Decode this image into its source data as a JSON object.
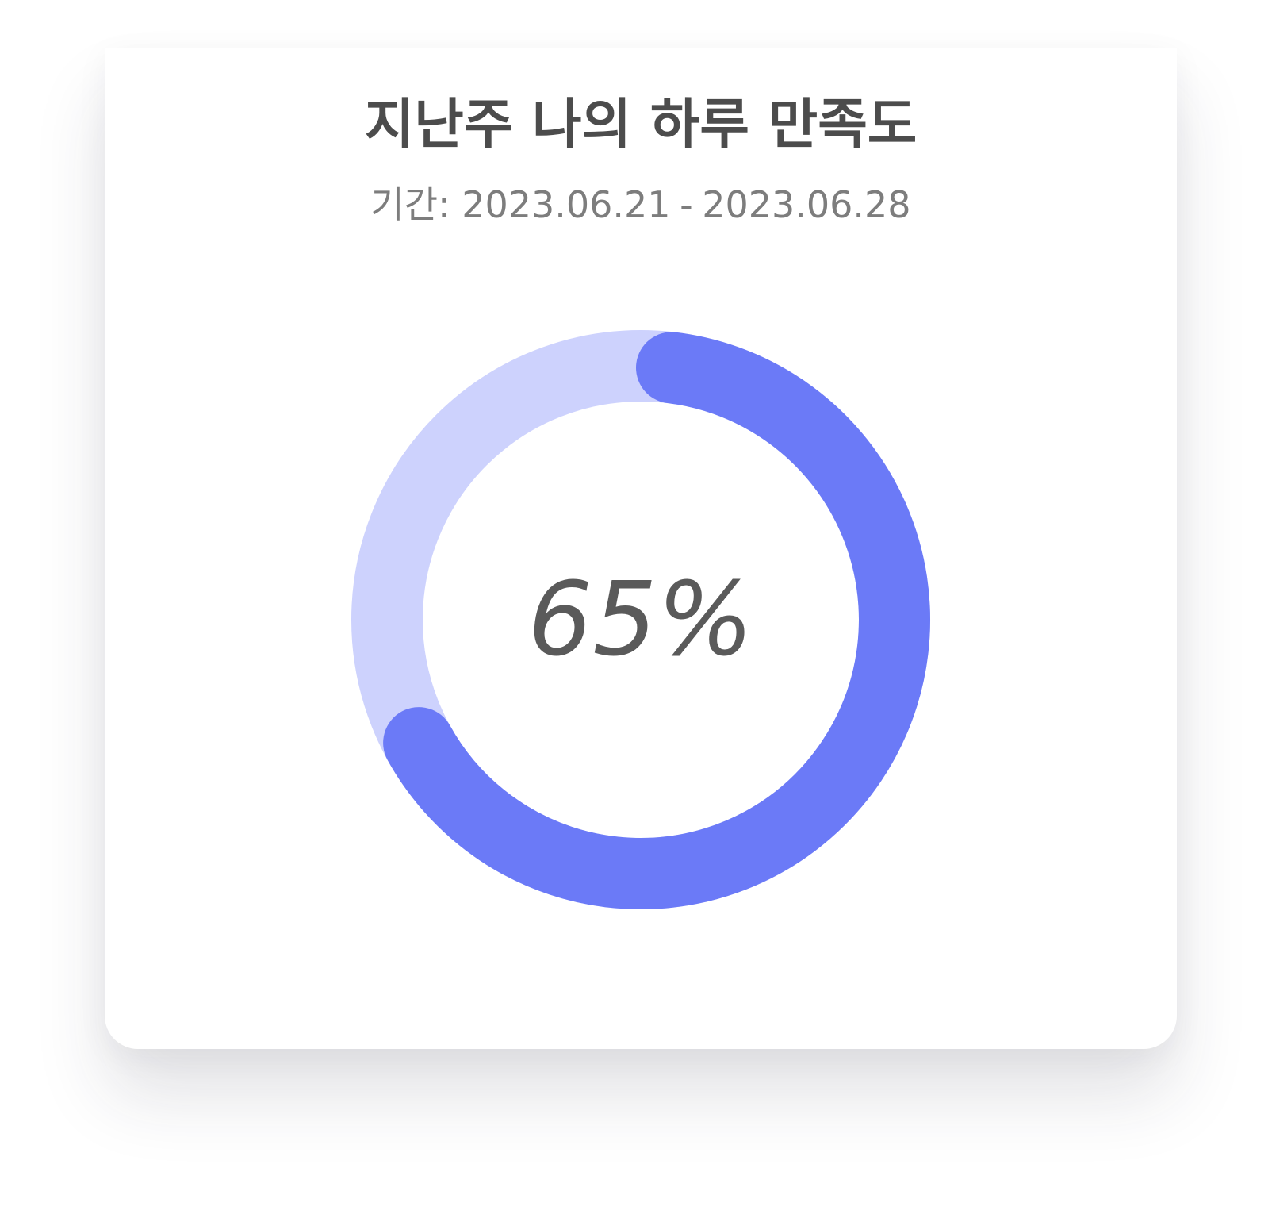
{
  "card": {
    "title": "지난주 나의 하루 만족도",
    "period_label": "기간:",
    "period_start": "2023.06.21",
    "period_separator": "-",
    "period_end": "2023.06.28"
  },
  "chart_data": {
    "type": "pie",
    "variant": "donut-progress",
    "value_percent": 65,
    "center_label": "65%",
    "colors": {
      "progress": "#6b7af7",
      "track": "#cdd2fd",
      "label": "#5a5a5a"
    }
  }
}
